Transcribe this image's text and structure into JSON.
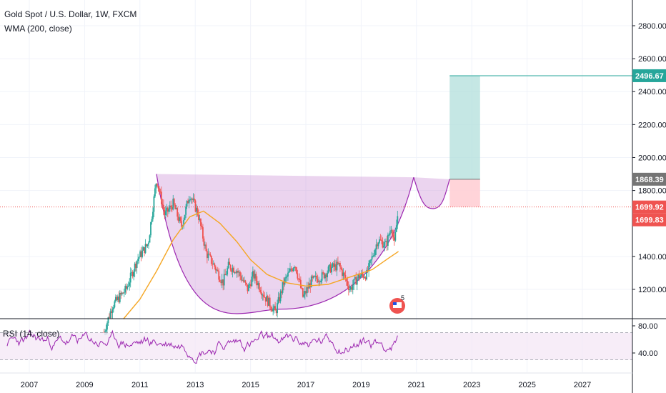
{
  "header": {
    "title": "Gold Spot / U.S. Dollar, 1W, FXCM",
    "indicator": "WMA (200, close)"
  },
  "colors": {
    "up_candle": "#26a69a",
    "down_candle": "#ef5350",
    "wma": "#f5a623",
    "cup_fill": "#ce93d8",
    "cup_line": "#9c27b0",
    "rsi_line": "#9c27b0",
    "target_zone": "#b2dfdb",
    "stop_zone": "#ffcdd2",
    "badge_target": "#26a69a",
    "badge_entry": "#757575",
    "badge_price": "#ef5350"
  },
  "price_axis": {
    "ticks": [
      "2800.00",
      "2600.00",
      "2400.00",
      "2200.00",
      "2000.00",
      "1800.00",
      "1400.00",
      "1200.00"
    ],
    "badges": [
      {
        "label": "2496.67",
        "value": 2496.67,
        "kind": "target"
      },
      {
        "label": "1868.39",
        "value": 1868.39,
        "kind": "entry"
      },
      {
        "label": "1699.92",
        "value": 1699.92,
        "kind": "price"
      },
      {
        "label": "1699.83",
        "value": 1699.83,
        "kind": "price"
      }
    ]
  },
  "rsi_panel": {
    "label": "RSI (14, close)",
    "ticks": [
      "80.00",
      "40.00"
    ],
    "upper_band": 70,
    "lower_band": 30
  },
  "time_axis": {
    "ticks": [
      "2007",
      "2009",
      "2011",
      "2013",
      "2015",
      "2017",
      "2019",
      "2021",
      "2023",
      "2025",
      "2027"
    ]
  },
  "events_badge": "5",
  "chart_data": {
    "type": "candlestick",
    "title": "Gold Spot / U.S. Dollar, 1W, FXCM",
    "ylim": [
      900,
      2950
    ],
    "xlim": [
      2006.2,
      2028.9
    ],
    "price_path": [
      [
        2009.7,
        940
      ],
      [
        2010.0,
        1100
      ],
      [
        2010.5,
        1200
      ],
      [
        2010.9,
        1380
      ],
      [
        2011.3,
        1480
      ],
      [
        2011.6,
        1870
      ],
      [
        2011.9,
        1650
      ],
      [
        2012.2,
        1720
      ],
      [
        2012.5,
        1580
      ],
      [
        2012.8,
        1780
      ],
      [
        2013.1,
        1660
      ],
      [
        2013.4,
        1420
      ],
      [
        2013.7,
        1340
      ],
      [
        2014.0,
        1240
      ],
      [
        2014.2,
        1340
      ],
      [
        2014.5,
        1320
      ],
      [
        2014.9,
        1200
      ],
      [
        2015.1,
        1290
      ],
      [
        2015.5,
        1160
      ],
      [
        2015.9,
        1060
      ],
      [
        2016.2,
        1240
      ],
      [
        2016.6,
        1360
      ],
      [
        2016.9,
        1150
      ],
      [
        2017.2,
        1250
      ],
      [
        2017.6,
        1280
      ],
      [
        2017.9,
        1330
      ],
      [
        2018.2,
        1345
      ],
      [
        2018.6,
        1200
      ],
      [
        2018.9,
        1280
      ],
      [
        2019.2,
        1290
      ],
      [
        2019.6,
        1500
      ],
      [
        2019.9,
        1470
      ],
      [
        2020.1,
        1590
      ],
      [
        2020.2,
        1470
      ],
      [
        2020.35,
        1699.83
      ]
    ],
    "wma_path": [
      [
        2010.4,
        1020
      ],
      [
        2011.0,
        1140
      ],
      [
        2011.6,
        1310
      ],
      [
        2012.2,
        1500
      ],
      [
        2012.8,
        1640
      ],
      [
        2013.3,
        1675
      ],
      [
        2013.9,
        1600
      ],
      [
        2014.5,
        1490
      ],
      [
        2015.0,
        1380
      ],
      [
        2015.6,
        1290
      ],
      [
        2016.3,
        1240
      ],
      [
        2017.0,
        1220
      ],
      [
        2017.8,
        1230
      ],
      [
        2018.6,
        1275
      ],
      [
        2019.4,
        1320
      ],
      [
        2020.0,
        1390
      ],
      [
        2020.35,
        1430
      ]
    ],
    "cup": {
      "rim_left": [
        2011.6,
        1900
      ],
      "rim_right": [
        2020.9,
        1880
      ],
      "bottom": [
        2016.1,
        1080
      ]
    },
    "handle": {
      "start": [
        2020.9,
        1880
      ],
      "bottom": [
        2021.6,
        1690
      ],
      "end": [
        2022.2,
        1868.39
      ]
    },
    "position": {
      "entry": 1868.39,
      "target": 2496.67,
      "stop": 1699.92,
      "start_year": 2022.2,
      "end_year": 2023.3
    },
    "current_price": 1699.92,
    "rsi": {
      "range": [
        20,
        90
      ],
      "upper": 70,
      "lower": 30
    }
  }
}
